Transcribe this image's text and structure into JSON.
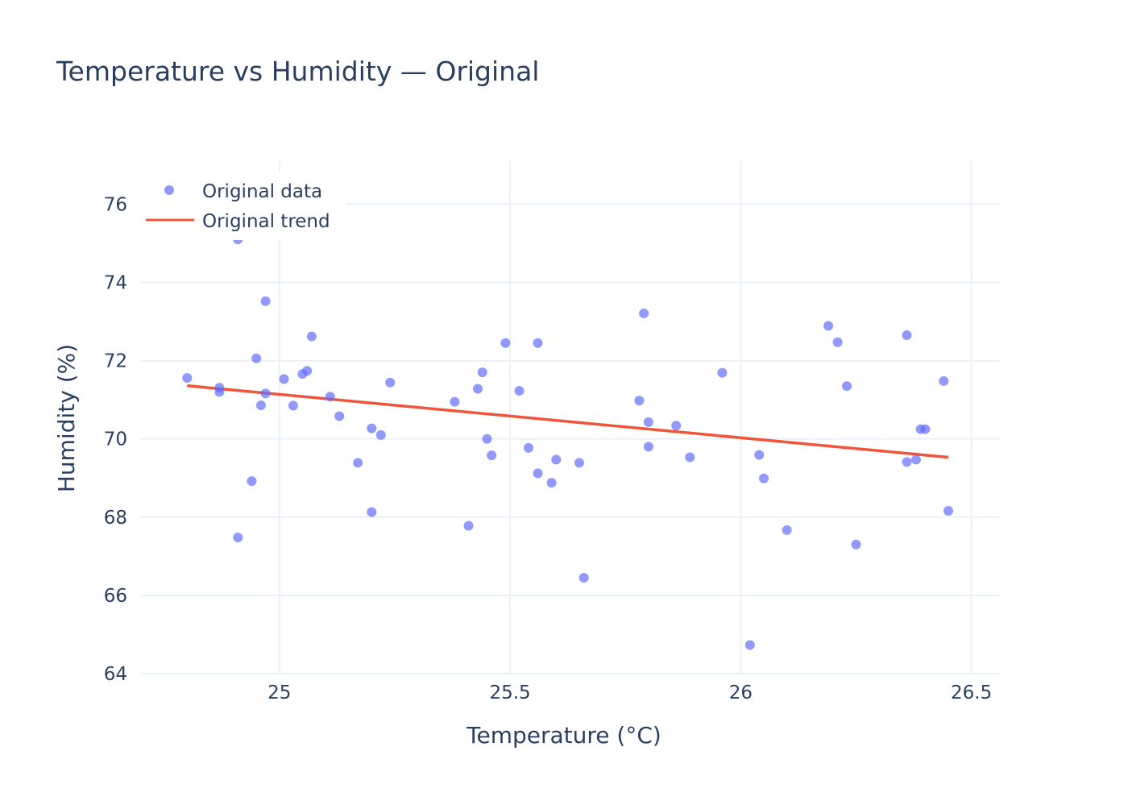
{
  "chart_data": {
    "type": "scatter",
    "title": "Temperature vs Humidity — Original",
    "xlabel": "Temperature (°C)",
    "ylabel": "Humidity (%)",
    "xlim": [
      24.7,
      26.56
    ],
    "ylim": [
      64,
      77.1
    ],
    "x_ticks": [
      25,
      25.5,
      26,
      26.5
    ],
    "x_tick_labels": [
      "25",
      "25.5",
      "26",
      "26.5"
    ],
    "y_ticks": [
      64,
      66,
      68,
      70,
      72,
      74,
      76
    ],
    "y_tick_labels": [
      "64",
      "66",
      "68",
      "70",
      "72",
      "74",
      "76"
    ],
    "grid": true,
    "legend_position": "top-left",
    "series": [
      {
        "name": "Original data",
        "kind": "markers",
        "color": "#636efa",
        "points": [
          [
            24.8,
            71.56
          ],
          [
            24.87,
            71.31
          ],
          [
            24.87,
            71.2
          ],
          [
            24.91,
            75.1
          ],
          [
            24.91,
            67.48
          ],
          [
            24.94,
            68.92
          ],
          [
            24.95,
            72.06
          ],
          [
            24.96,
            70.86
          ],
          [
            24.97,
            73.52
          ],
          [
            24.97,
            71.16
          ],
          [
            25.01,
            71.53
          ],
          [
            25.03,
            70.85
          ],
          [
            25.05,
            71.66
          ],
          [
            25.06,
            71.74
          ],
          [
            25.07,
            72.62
          ],
          [
            25.11,
            71.08
          ],
          [
            25.13,
            70.58
          ],
          [
            25.17,
            69.39
          ],
          [
            25.2,
            70.27
          ],
          [
            25.2,
            68.13
          ],
          [
            25.22,
            70.1
          ],
          [
            25.24,
            71.44
          ],
          [
            25.38,
            70.95
          ],
          [
            25.41,
            67.78
          ],
          [
            25.43,
            71.28
          ],
          [
            25.44,
            71.7
          ],
          [
            25.45,
            70.0
          ],
          [
            25.46,
            69.58
          ],
          [
            25.49,
            72.45
          ],
          [
            25.52,
            71.23
          ],
          [
            25.54,
            69.77
          ],
          [
            25.56,
            72.45
          ],
          [
            25.56,
            69.12
          ],
          [
            25.59,
            68.88
          ],
          [
            25.6,
            69.47
          ],
          [
            25.65,
            69.39
          ],
          [
            25.66,
            66.45
          ],
          [
            25.78,
            70.98
          ],
          [
            25.79,
            73.21
          ],
          [
            25.8,
            70.43
          ],
          [
            25.8,
            69.8
          ],
          [
            25.86,
            70.34
          ],
          [
            25.89,
            69.53
          ],
          [
            25.96,
            71.69
          ],
          [
            26.02,
            64.73
          ],
          [
            26.04,
            69.59
          ],
          [
            26.05,
            68.99
          ],
          [
            26.1,
            67.67
          ],
          [
            26.19,
            72.89
          ],
          [
            26.21,
            72.47
          ],
          [
            26.23,
            71.35
          ],
          [
            26.25,
            67.3
          ],
          [
            26.36,
            72.65
          ],
          [
            26.36,
            69.41
          ],
          [
            26.38,
            69.47
          ],
          [
            26.39,
            70.25
          ],
          [
            26.4,
            70.25
          ],
          [
            26.44,
            71.48
          ],
          [
            26.45,
            68.16
          ]
        ]
      },
      {
        "name": "Original trend",
        "kind": "line",
        "color": "#ef553b",
        "points": [
          [
            24.8,
            71.36
          ],
          [
            26.45,
            69.53
          ]
        ]
      }
    ]
  }
}
